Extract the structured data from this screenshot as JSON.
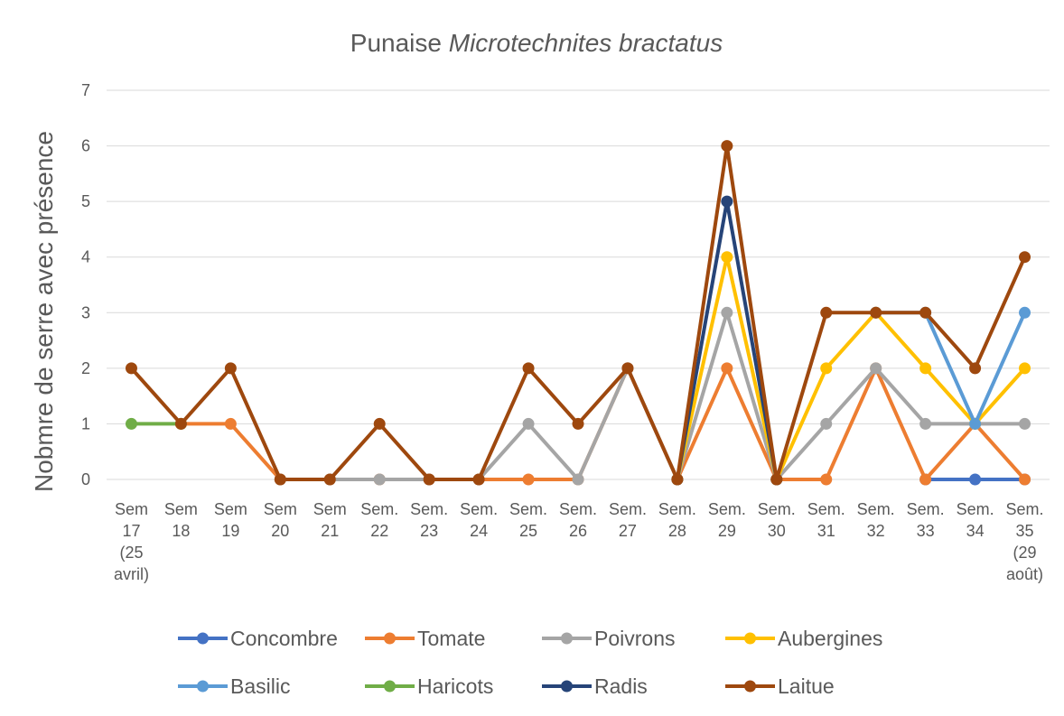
{
  "chart_data": {
    "type": "line",
    "title": "Punaise",
    "title_italic": "Microtechnites bractatus",
    "y_label": "Nobmre de serre avec présence",
    "categories": [
      "Sem 17 (25 avril)",
      "Sem 18",
      "Sem 19",
      "Sem 20",
      "Sem 21",
      "Sem. 22",
      "Sem. 23",
      "Sem. 24",
      "Sem. 25",
      "Sem. 26",
      "Sem. 27",
      "Sem. 28",
      "Sem. 29",
      "Sem. 30",
      "Sem. 31",
      "Sem. 32",
      "Sem. 33",
      "Sem. 34",
      "Sem. 35 (29 août)"
    ],
    "ylim": [
      0,
      7
    ],
    "yticks": [
      0,
      1,
      2,
      3,
      4,
      5,
      6,
      7
    ],
    "grid": true,
    "series": [
      {
        "name": "Concombre",
        "color": "#4472c4",
        "values": [
          null,
          null,
          null,
          null,
          null,
          null,
          null,
          null,
          null,
          null,
          null,
          null,
          null,
          null,
          null,
          null,
          0,
          0,
          0
        ]
      },
      {
        "name": "Tomate",
        "color": "#ed7d31",
        "values": [
          null,
          1,
          1,
          0,
          0,
          0,
          0,
          0,
          0,
          0,
          2,
          0,
          2,
          0,
          0,
          2,
          0,
          1,
          0
        ]
      },
      {
        "name": "Poivrons",
        "color": "#a5a5a5",
        "values": [
          null,
          null,
          null,
          0,
          0,
          0,
          0,
          0,
          1,
          0,
          2,
          0,
          3,
          0,
          1,
          2,
          1,
          1,
          1
        ]
      },
      {
        "name": "Aubergines",
        "color": "#ffc000",
        "values": [
          null,
          null,
          null,
          null,
          null,
          null,
          null,
          null,
          null,
          null,
          null,
          0,
          4,
          0,
          2,
          3,
          2,
          1,
          2
        ]
      },
      {
        "name": "Basilic",
        "color": "#5b9bd5",
        "values": [
          null,
          null,
          null,
          null,
          null,
          null,
          null,
          null,
          null,
          null,
          null,
          null,
          null,
          null,
          null,
          3,
          3,
          1,
          3
        ]
      },
      {
        "name": "Haricots",
        "color": "#70ad47",
        "values": [
          1,
          1,
          null,
          null,
          null,
          null,
          null,
          null,
          null,
          null,
          null,
          null,
          null,
          null,
          null,
          null,
          null,
          null,
          null
        ]
      },
      {
        "name": "Radis",
        "color": "#264478",
        "values": [
          null,
          null,
          null,
          null,
          null,
          null,
          null,
          null,
          null,
          null,
          null,
          0,
          5,
          0,
          null,
          null,
          null,
          null,
          null
        ]
      },
      {
        "name": "Laitue",
        "color": "#9e480e",
        "values": [
          2,
          1,
          2,
          0,
          0,
          1,
          0,
          0,
          2,
          1,
          2,
          0,
          6,
          0,
          3,
          3,
          3,
          2,
          4
        ]
      }
    ]
  }
}
